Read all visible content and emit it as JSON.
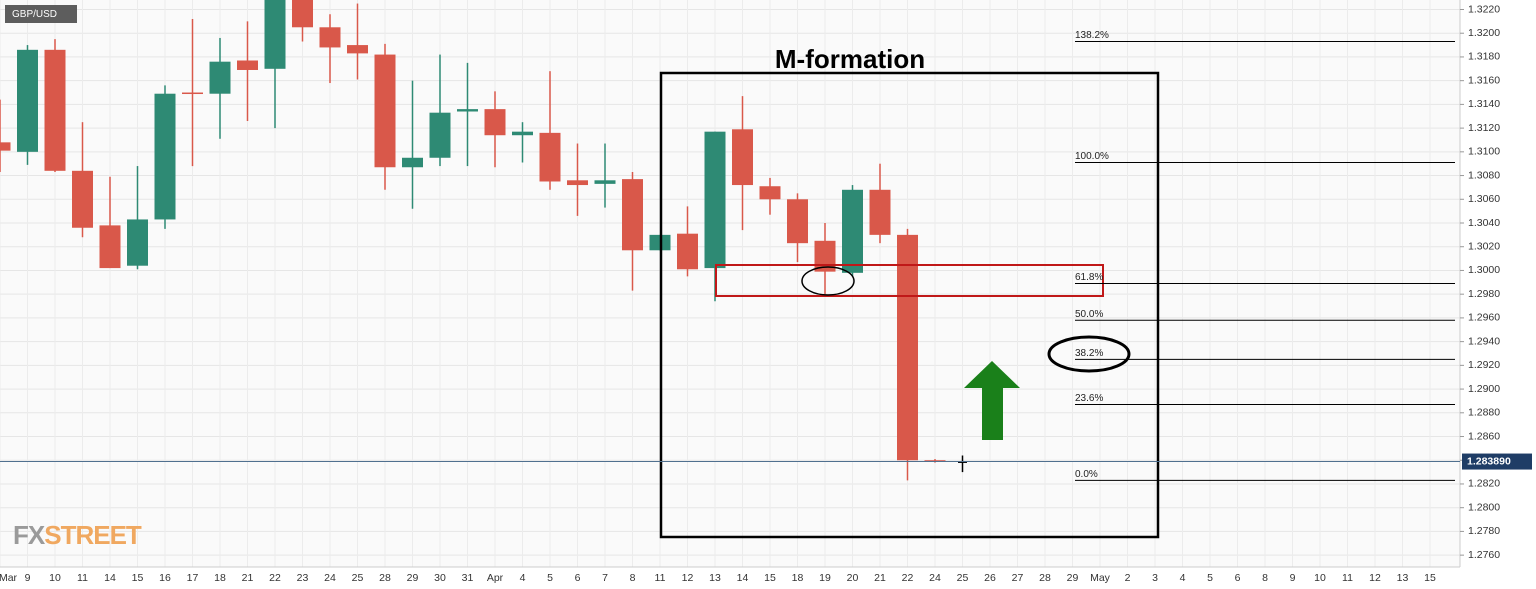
{
  "chart_data": {
    "type": "candlestick",
    "symbol": "GBP/USD",
    "watermark": [
      "FX",
      "STREET"
    ],
    "annotation_title": "M-formation",
    "categories": [
      "Mar",
      "9",
      "10",
      "11",
      "14",
      "15",
      "16",
      "17",
      "18",
      "21",
      "22",
      "23",
      "24",
      "25",
      "28",
      "29",
      "30",
      "31",
      "Apr",
      "4",
      "5",
      "6",
      "7",
      "8",
      "11",
      "12",
      "13",
      "14",
      "15",
      "18",
      "19",
      "20",
      "21",
      "22",
      "24",
      "25",
      "26",
      "27",
      "28",
      "29",
      "May",
      "2",
      "3",
      "4",
      "5",
      "6",
      "8",
      "9",
      "10",
      "11",
      "12",
      "13",
      "15"
    ],
    "open": [
      1.3108,
      1.31,
      1.3186,
      1.3084,
      1.3038,
      1.3004,
      1.3043,
      1.315,
      1.3149,
      1.3177,
      1.317,
      1.325,
      1.3205,
      1.319,
      1.3182,
      1.3087,
      1.3095,
      1.3134,
      1.3136,
      1.3114,
      1.3116,
      1.3076,
      1.3073,
      1.3077,
      1.3017,
      1.3031,
      1.3002,
      1.3119,
      1.3071,
      1.306,
      1.3025,
      1.2998,
      1.3068,
      1.303,
      1.284,
      1.2839,
      null,
      null,
      null,
      null,
      null,
      null,
      null,
      null,
      null,
      null,
      null,
      null,
      null,
      null,
      null,
      null,
      null
    ],
    "high": [
      1.3144,
      1.319,
      1.3195,
      1.3125,
      1.3079,
      1.3088,
      1.3156,
      1.3212,
      1.3196,
      1.321,
      1.326,
      1.327,
      1.3216,
      1.3225,
      1.3191,
      1.316,
      1.3182,
      1.3175,
      1.3151,
      1.3125,
      1.3168,
      1.3107,
      1.3107,
      1.3083,
      1.303,
      1.3054,
      1.3117,
      1.3147,
      1.3078,
      1.3065,
      1.304,
      1.3072,
      1.309,
      1.3035,
      1.2841,
      1.2844,
      null,
      null,
      null,
      null,
      null,
      null,
      null,
      null,
      null,
      null,
      null,
      null,
      null,
      null,
      null,
      null,
      null
    ],
    "low": [
      1.3083,
      1.3089,
      1.3083,
      1.3028,
      1.3002,
      1.3001,
      1.3035,
      1.3088,
      1.3111,
      1.3126,
      1.312,
      1.3193,
      1.3158,
      1.3161,
      1.3068,
      1.3052,
      1.3088,
      1.3088,
      1.3087,
      1.3091,
      1.3068,
      1.3046,
      1.3053,
      1.2983,
      1.3017,
      1.2995,
      1.2974,
      1.3034,
      1.3047,
      1.3007,
      1.298,
      1.2995,
      1.3023,
      1.2823,
      1.2838,
      1.283,
      null,
      null,
      null,
      null,
      null,
      null,
      null,
      null,
      null,
      null,
      null,
      null,
      null,
      null,
      null,
      null,
      null
    ],
    "close": [
      1.3101,
      1.3186,
      1.3084,
      1.3036,
      1.3002,
      1.3043,
      1.3149,
      1.3149,
      1.3176,
      1.3169,
      1.324,
      1.3205,
      1.3188,
      1.3183,
      1.3087,
      1.3095,
      1.3133,
      1.3136,
      1.3114,
      1.3117,
      1.3075,
      1.3072,
      1.3076,
      1.3017,
      1.303,
      1.3001,
      1.3117,
      1.3072,
      1.306,
      1.3023,
      1.2999,
      1.3068,
      1.303,
      1.284,
      1.2839,
      1.2839,
      null,
      null,
      null,
      null,
      null,
      null,
      null,
      null,
      null,
      null,
      null,
      null,
      null,
      null,
      null,
      null,
      null
    ],
    "up_color": "#2e8a74",
    "down_color": "#d9584a",
    "current_color": "#000000",
    "last_price": {
      "value": 1.28389,
      "label": "1.283890"
    },
    "fib_levels": [
      {
        "label": "138.2%",
        "price": 1.3193
      },
      {
        "label": "100.0%",
        "price": 1.3091
      },
      {
        "label": "61.8%",
        "price": 1.2989
      },
      {
        "label": "50.0%",
        "price": 1.2958
      },
      {
        "label": "38.2%",
        "price": 1.2925
      },
      {
        "label": "23.6%",
        "price": 1.2887
      },
      {
        "label": "0.0%",
        "price": 1.2823
      }
    ],
    "ylim": [
      1.275,
      1.3228
    ],
    "yticks": [
      {
        "value": 1.276,
        "label": "1.2760"
      },
      {
        "value": 1.278,
        "label": "1.2780"
      },
      {
        "value": 1.28,
        "label": "1.2800"
      },
      {
        "value": 1.282,
        "label": "1.2820"
      },
      {
        "value": 1.284,
        "label": "1.2840"
      },
      {
        "value": 1.286,
        "label": "1.2860"
      },
      {
        "value": 1.288,
        "label": "1.2880"
      },
      {
        "value": 1.29,
        "label": "1.2900"
      },
      {
        "value": 1.292,
        "label": "1.2920"
      },
      {
        "value": 1.294,
        "label": "1.2940"
      },
      {
        "value": 1.296,
        "label": "1.2960"
      },
      {
        "value": 1.298,
        "label": "1.2980"
      },
      {
        "value": 1.3,
        "label": "1.3000"
      },
      {
        "value": 1.302,
        "label": "1.3020"
      },
      {
        "value": 1.304,
        "label": "1.3040"
      },
      {
        "value": 1.306,
        "label": "1.3060"
      },
      {
        "value": 1.308,
        "label": "1.3080"
      },
      {
        "value": 1.31,
        "label": "1.3100"
      },
      {
        "value": 1.312,
        "label": "1.3120"
      },
      {
        "value": 1.314,
        "label": "1.3140"
      },
      {
        "value": 1.316,
        "label": "1.3160"
      },
      {
        "value": 1.318,
        "label": "1.3180"
      },
      {
        "value": 1.32,
        "label": "1.3200"
      },
      {
        "value": 1.322,
        "label": "1.3220"
      }
    ],
    "grid": true
  }
}
